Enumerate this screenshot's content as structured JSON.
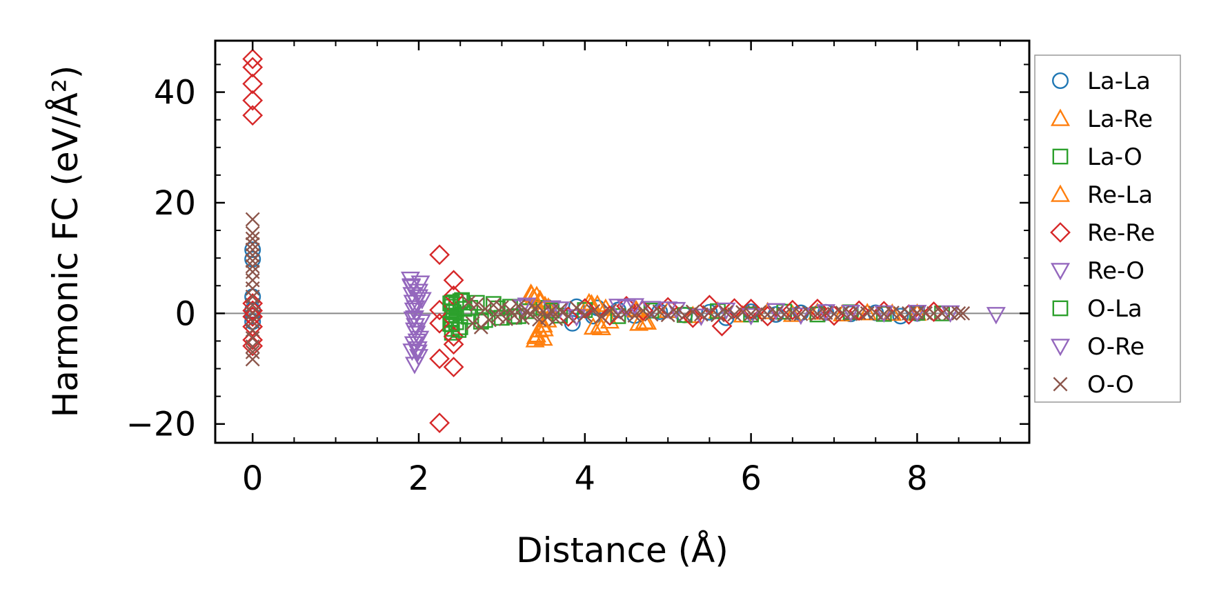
{
  "chart_data": {
    "type": "scatter",
    "xlabel": "Distance (Å)",
    "ylabel": "Harmonic FC (eV/Å²)",
    "xlim": [
      -0.45,
      9.35
    ],
    "ylim": [
      -23.4,
      49.3
    ],
    "xticks": [
      0,
      2,
      4,
      6,
      8
    ],
    "yticks": [
      -20,
      0,
      20,
      40
    ],
    "ytick_labels": [
      "−20",
      "0",
      "20",
      "40"
    ],
    "zero_line": true,
    "grid": false,
    "legend_position": "outside-right",
    "series": [
      {
        "name": "La-La",
        "marker": "circle",
        "color": "#1f77b4",
        "points": [
          [
            0,
            3.0
          ],
          [
            0,
            -1.5
          ],
          [
            0,
            0.6
          ],
          [
            0,
            -0.5
          ],
          [
            0,
            9.8
          ],
          [
            0,
            11.5
          ],
          [
            3.85,
            -1.8
          ],
          [
            3.9,
            1.2
          ],
          [
            4.1,
            -0.5
          ],
          [
            4.15,
            1.0
          ],
          [
            4.4,
            0.6
          ],
          [
            4.6,
            -0.4
          ],
          [
            4.9,
            0.3
          ],
          [
            5.2,
            -0.3
          ],
          [
            5.5,
            0.2
          ],
          [
            5.7,
            -0.8
          ],
          [
            6.0,
            0.3
          ],
          [
            6.3,
            -0.2
          ],
          [
            6.6,
            0.1
          ],
          [
            6.9,
            0.2
          ],
          [
            7.2,
            -0.1
          ],
          [
            7.5,
            0.1
          ],
          [
            7.8,
            -0.5
          ],
          [
            8.0,
            0.0
          ]
        ]
      },
      {
        "name": "La-Re",
        "marker": "triangle-up",
        "color": "#ff7f0e",
        "points": [
          [
            3.35,
            3.6
          ],
          [
            3.38,
            2.8
          ],
          [
            3.4,
            -4.8
          ],
          [
            3.42,
            -3.9
          ],
          [
            3.45,
            -3.0
          ],
          [
            3.47,
            2.2
          ],
          [
            3.5,
            -2.1
          ],
          [
            3.52,
            1.4
          ],
          [
            3.55,
            -1.2
          ],
          [
            3.58,
            0.8
          ],
          [
            3.5,
            -4.5
          ],
          [
            3.42,
            3.2
          ],
          [
            4.05,
            1.9
          ],
          [
            4.1,
            -2.5
          ],
          [
            4.15,
            1.6
          ],
          [
            4.2,
            -2.6
          ],
          [
            4.25,
            0.9
          ],
          [
            4.3,
            -1.4
          ],
          [
            4.6,
            0.8
          ],
          [
            4.65,
            -1.8
          ],
          [
            4.75,
            -1.6
          ],
          [
            5.0,
            0.5
          ],
          [
            5.3,
            -0.4
          ],
          [
            5.6,
            0.4
          ],
          [
            5.9,
            -0.3
          ],
          [
            6.2,
            0.3
          ],
          [
            6.5,
            -0.2
          ],
          [
            6.8,
            0.2
          ],
          [
            7.1,
            -0.1
          ],
          [
            7.4,
            0.1
          ],
          [
            7.7,
            0.0
          ],
          [
            8.0,
            0.0
          ]
        ]
      },
      {
        "name": "La-O",
        "marker": "square",
        "color": "#2ca02c",
        "points": [
          [
            2.4,
            2.0
          ],
          [
            2.4,
            1.2
          ],
          [
            2.4,
            0.4
          ],
          [
            2.4,
            -0.4
          ],
          [
            2.4,
            -1.2
          ],
          [
            2.4,
            -2.0
          ],
          [
            2.4,
            -2.8
          ],
          [
            2.4,
            -3.5
          ],
          [
            2.45,
            1.6
          ],
          [
            2.45,
            -1.6
          ],
          [
            2.5,
            2.2
          ],
          [
            2.5,
            -2.5
          ],
          [
            2.55,
            0.8
          ],
          [
            2.6,
            -0.6
          ],
          [
            2.7,
            1.9
          ],
          [
            2.8,
            -1.2
          ],
          [
            2.9,
            1.7
          ],
          [
            3.0,
            -0.8
          ],
          [
            3.1,
            1.2
          ],
          [
            3.2,
            -0.5
          ],
          [
            3.3,
            0.4
          ],
          [
            3.5,
            1.0
          ],
          [
            3.7,
            -0.4
          ],
          [
            4.0,
            0.6
          ],
          [
            4.4,
            -0.5
          ],
          [
            4.8,
            0.5
          ],
          [
            5.2,
            -0.3
          ],
          [
            5.6,
            0.4
          ],
          [
            6.0,
            -0.2
          ],
          [
            6.4,
            0.3
          ],
          [
            6.8,
            -0.2
          ],
          [
            7.2,
            0.2
          ],
          [
            7.6,
            -0.1
          ],
          [
            8.0,
            0.1
          ],
          [
            8.3,
            0.0
          ]
        ]
      },
      {
        "name": "Re-La",
        "marker": "triangle-up",
        "color": "#ff7f0e",
        "points": [
          [
            3.36,
            3.4
          ],
          [
            3.41,
            -4.2
          ],
          [
            3.46,
            2.5
          ],
          [
            3.51,
            -2.8
          ],
          [
            3.56,
            1.1
          ],
          [
            4.08,
            1.7
          ],
          [
            4.18,
            -2.2
          ],
          [
            4.62,
            0.6
          ],
          [
            4.72,
            -1.5
          ]
        ]
      },
      {
        "name": "Re-Re",
        "marker": "diamond",
        "color": "#d62728",
        "points": [
          [
            0,
            46.0
          ],
          [
            0,
            44.5
          ],
          [
            0,
            41.5
          ],
          [
            0,
            38.5
          ],
          [
            0,
            35.8
          ],
          [
            0,
            0.5
          ],
          [
            0,
            -0.6
          ],
          [
            0,
            -2.4
          ],
          [
            0,
            -4.8
          ],
          [
            0,
            -5.9
          ],
          [
            0,
            1.8
          ],
          [
            2.25,
            10.6
          ],
          [
            2.25,
            0.6
          ],
          [
            2.25,
            -1.8
          ],
          [
            2.25,
            -8.2
          ],
          [
            2.25,
            -19.8
          ],
          [
            2.42,
            6.0
          ],
          [
            2.42,
            3.2
          ],
          [
            2.42,
            -4.2
          ],
          [
            2.42,
            -5.6
          ],
          [
            2.42,
            -9.7
          ],
          [
            3.8,
            -0.6
          ],
          [
            4.0,
            0.9
          ],
          [
            4.3,
            -0.4
          ],
          [
            4.5,
            1.3
          ],
          [
            4.7,
            0.5
          ],
          [
            5.0,
            1.1
          ],
          [
            5.3,
            -0.8
          ],
          [
            5.5,
            1.5
          ],
          [
            5.65,
            -2.3
          ],
          [
            5.8,
            0.9
          ],
          [
            6.0,
            0.8
          ],
          [
            6.2,
            -0.5
          ],
          [
            6.5,
            0.6
          ],
          [
            6.8,
            0.8
          ],
          [
            7.0,
            -0.4
          ],
          [
            7.3,
            0.5
          ],
          [
            7.6,
            0.4
          ],
          [
            7.9,
            -0.2
          ],
          [
            8.2,
            0.3
          ]
        ]
      },
      {
        "name": "Re-O",
        "marker": "triangle-down",
        "color": "#9467bd",
        "points": [
          [
            1.9,
            6.2
          ],
          [
            1.91,
            4.8
          ],
          [
            1.92,
            3.4
          ],
          [
            1.93,
            2.0
          ],
          [
            1.94,
            0.6
          ],
          [
            1.95,
            -0.8
          ],
          [
            1.96,
            -2.2
          ],
          [
            1.97,
            -3.6
          ],
          [
            1.98,
            -5.0
          ],
          [
            1.99,
            -6.4
          ],
          [
            2.0,
            -7.8
          ],
          [
            1.95,
            -9.2
          ],
          [
            2.02,
            5.5
          ],
          [
            2.0,
            3.0
          ],
          [
            1.96,
            1.0
          ],
          [
            2.03,
            -1.5
          ],
          [
            2.01,
            -4.5
          ],
          [
            1.92,
            -6.8
          ],
          [
            2.04,
            2.5
          ],
          [
            3.3,
            1.5
          ],
          [
            3.7,
            0.8
          ],
          [
            3.9,
            -0.6
          ],
          [
            4.4,
            1.3
          ],
          [
            4.6,
            1.4
          ],
          [
            4.8,
            0.9
          ],
          [
            5.1,
            0.7
          ],
          [
            5.4,
            -0.5
          ],
          [
            5.7,
            0.6
          ],
          [
            6.0,
            -0.4
          ],
          [
            6.3,
            0.5
          ],
          [
            6.6,
            -0.3
          ],
          [
            6.9,
            0.3
          ],
          [
            7.2,
            0.2
          ],
          [
            7.6,
            0.1
          ],
          [
            8.0,
            0.2
          ],
          [
            8.4,
            0.1
          ],
          [
            8.95,
            -0.2
          ]
        ]
      },
      {
        "name": "O-La",
        "marker": "square",
        "color": "#2ca02c",
        "points": [
          [
            2.38,
            1.8
          ],
          [
            2.38,
            -1.9
          ],
          [
            2.42,
            0.2
          ],
          [
            2.48,
            -3.0
          ],
          [
            2.52,
            2.4
          ],
          [
            2.62,
            1.0
          ],
          [
            2.75,
            -1.5
          ],
          [
            2.95,
            0.9
          ],
          [
            3.15,
            -0.6
          ],
          [
            3.6,
            0.5
          ]
        ]
      },
      {
        "name": "O-Re",
        "marker": "triangle-down",
        "color": "#9467bd",
        "points": [
          [
            1.91,
            5.0
          ],
          [
            1.93,
            -1.0
          ],
          [
            1.95,
            -3.0
          ],
          [
            1.97,
            2.0
          ],
          [
            1.99,
            -7.0
          ],
          [
            2.0,
            4.0
          ],
          [
            1.94,
            -5.5
          ],
          [
            3.25,
            1.2
          ],
          [
            3.6,
            1.0
          ],
          [
            4.5,
            1.1
          ],
          [
            5.0,
            0.8
          ]
        ]
      },
      {
        "name": "O-O",
        "marker": "x",
        "color": "#8c564b",
        "points": [
          [
            0,
            17.0
          ],
          [
            0,
            14.5
          ],
          [
            0,
            13.5
          ],
          [
            0,
            12.5
          ],
          [
            0,
            11.5
          ],
          [
            0,
            10.5
          ],
          [
            0,
            9.5
          ],
          [
            0,
            8.5
          ],
          [
            0,
            7.5
          ],
          [
            0,
            6.0
          ],
          [
            0,
            4.5
          ],
          [
            0,
            3.0
          ],
          [
            0,
            1.5
          ],
          [
            0,
            0.0
          ],
          [
            0,
            -1.5
          ],
          [
            0,
            -3.0
          ],
          [
            0,
            -4.5
          ],
          [
            0,
            -6.0
          ],
          [
            0,
            -7.0
          ],
          [
            0,
            -8.3
          ],
          [
            2.6,
            2.0
          ],
          [
            2.65,
            -1.8
          ],
          [
            2.7,
            1.6
          ],
          [
            2.75,
            -2.5
          ],
          [
            2.8,
            0.8
          ],
          [
            2.85,
            -1.2
          ],
          [
            2.9,
            1.5
          ],
          [
            2.95,
            -0.6
          ],
          [
            3.0,
            1.1
          ],
          [
            3.05,
            -1.0
          ],
          [
            3.1,
            0.6
          ],
          [
            3.15,
            -0.4
          ],
          [
            3.2,
            1.3
          ],
          [
            3.25,
            -0.8
          ],
          [
            3.3,
            0.4
          ],
          [
            3.35,
            -0.2
          ],
          [
            3.4,
            0.9
          ],
          [
            3.45,
            -1.1
          ],
          [
            3.5,
            0.3
          ],
          [
            3.55,
            -0.7
          ],
          [
            3.6,
            0.5
          ],
          [
            3.65,
            -1.0
          ],
          [
            3.7,
            0.6
          ],
          [
            3.8,
            -0.5
          ],
          [
            3.9,
            1.0
          ],
          [
            4.0,
            -0.3
          ],
          [
            4.1,
            0.4
          ],
          [
            4.2,
            -0.6
          ],
          [
            4.3,
            0.5
          ],
          [
            4.4,
            -0.3
          ],
          [
            4.5,
            0.2
          ],
          [
            4.6,
            -0.4
          ],
          [
            4.7,
            0.5
          ],
          [
            4.8,
            -0.2
          ],
          [
            4.9,
            0.3
          ],
          [
            5.0,
            -0.3
          ],
          [
            5.1,
            0.2
          ],
          [
            5.2,
            -0.4
          ],
          [
            5.3,
            0.3
          ],
          [
            5.4,
            -0.2
          ],
          [
            5.5,
            0.2
          ],
          [
            5.6,
            -0.3
          ],
          [
            5.7,
            0.2
          ],
          [
            5.8,
            -0.2
          ],
          [
            5.9,
            0.2
          ],
          [
            6.0,
            -0.1
          ],
          [
            6.1,
            0.2
          ],
          [
            6.2,
            -0.2
          ],
          [
            6.3,
            0.1
          ],
          [
            6.4,
            -0.2
          ],
          [
            6.5,
            0.1
          ],
          [
            6.6,
            -0.1
          ],
          [
            6.7,
            0.1
          ],
          [
            6.8,
            -0.1
          ],
          [
            6.9,
            0.1
          ],
          [
            7.0,
            -0.1
          ],
          [
            7.1,
            0.1
          ],
          [
            7.2,
            -0.1
          ],
          [
            7.3,
            0.1
          ],
          [
            7.4,
            0.0
          ],
          [
            7.5,
            0.1
          ],
          [
            7.6,
            -0.1
          ],
          [
            7.7,
            0.1
          ],
          [
            7.8,
            0.0
          ],
          [
            7.9,
            0.0
          ],
          [
            8.0,
            0.1
          ],
          [
            8.1,
            0.0
          ],
          [
            8.2,
            0.0
          ],
          [
            8.3,
            0.0
          ],
          [
            8.4,
            0.0
          ],
          [
            8.5,
            0.0
          ],
          [
            8.55,
            0.0
          ]
        ]
      }
    ]
  }
}
